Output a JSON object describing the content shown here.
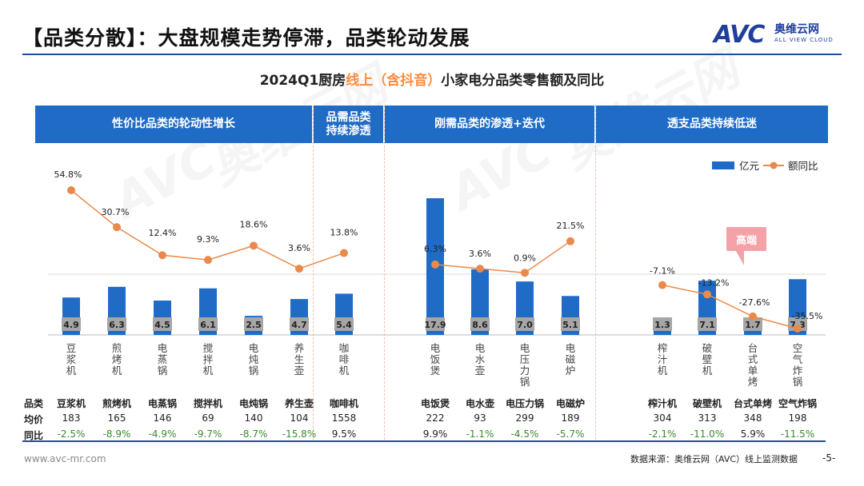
{
  "header": {
    "title": "【品类分散】：大盘规模走势停滞，品类轮动发展",
    "logo_mark": "AVC",
    "logo_cn": "奥维云网",
    "logo_en": "ALL VIEW CLOUD"
  },
  "chart_title": {
    "part1": "2024Q1厨房",
    "part2": "线上（含抖音）",
    "part3": "小家电分品类零售额及同比"
  },
  "colors": {
    "bar": "#1f6bc6",
    "line": "#e98a4c",
    "band": "#1f6bc6",
    "negative": "#3a8a2a",
    "callout": "#f4a1a8"
  },
  "segments": [
    {
      "label": "性价比品类的轮动性增长"
    },
    {
      "label": "品需品类持续渗透"
    },
    {
      "label": "刚需品类的渗透+迭代"
    },
    {
      "label": "透支品类持续低迷"
    }
  ],
  "legend": {
    "bar": "亿元",
    "line": "额同比"
  },
  "callout": "高端",
  "chart_data": {
    "type": "bar",
    "title": "2024Q1厨房线上（含抖音）小家电分品类零售额及同比",
    "categories": [
      "豆浆机",
      "煎烤机",
      "电蒸锅",
      "搅拌机",
      "电炖锅",
      "养生壶",
      "咖啡机",
      "电饭煲",
      "电水壶",
      "电压力锅",
      "电磁炉",
      "榨汁机",
      "破壁机",
      "台式单烤",
      "空气炸锅"
    ],
    "series": [
      {
        "name": "亿元",
        "kind": "bar",
        "values": [
          4.9,
          6.3,
          4.5,
          6.1,
          2.5,
          4.7,
          5.4,
          17.9,
          8.6,
          7.0,
          5.1,
          1.3,
          7.1,
          1.7,
          7.3
        ],
        "labels": [
          "4.9",
          "6.3",
          "4.5",
          "6.1",
          "2.5",
          "4.7",
          "5.4",
          "17.9",
          "8.6",
          "7.0",
          "5.1",
          "1.3",
          "7.1",
          "1.7",
          "7.3"
        ]
      },
      {
        "name": "额同比",
        "kind": "line",
        "values": [
          54.8,
          30.7,
          12.4,
          9.3,
          18.6,
          3.6,
          13.8,
          6.3,
          3.6,
          0.9,
          21.5,
          -7.1,
          -13.2,
          -27.6,
          -35.5
        ],
        "labels": [
          "54.8%",
          "30.7%",
          "12.4%",
          "9.3%",
          "18.6%",
          "3.6%",
          "13.8%",
          "6.3%",
          "3.6%",
          "0.9%",
          "21.5%",
          "-7.1%",
          "-13.2%",
          "-27.6%",
          "-35.5%"
        ]
      }
    ],
    "groups": [
      [
        0,
        1,
        2,
        3,
        4,
        5
      ],
      [
        6
      ],
      [
        7,
        8,
        9,
        10
      ],
      [
        11,
        12,
        13,
        14
      ]
    ],
    "legend_position": "top-right"
  },
  "table": {
    "row_labels": [
      "品类",
      "均价",
      "同比"
    ],
    "categories": [
      "豆浆机",
      "煎烤机",
      "电蒸锅",
      "搅拌机",
      "电炖锅",
      "养生壶",
      "咖啡机",
      "电饭煲",
      "电水壶",
      "电压力锅",
      "电磁炉",
      "榨汁机",
      "破壁机",
      "台式单烤",
      "空气炸锅"
    ],
    "avg_price": [
      "183",
      "165",
      "146",
      "69",
      "140",
      "104",
      "1558",
      "222",
      "93",
      "299",
      "189",
      "304",
      "313",
      "348",
      "198"
    ],
    "price_growth": [
      "-2.5%",
      "-8.9%",
      "-4.9%",
      "-9.7%",
      "-8.7%",
      "-15.8%",
      "9.5%",
      "9.9%",
      "-1.1%",
      "-4.5%",
      "-5.7%",
      "-2.1%",
      "-11.0%",
      "5.9%",
      "-11.5%"
    ]
  },
  "footer": {
    "website": "www.avc-mr.com",
    "source": "数据来源：奥维云网（AVC）线上监测数据",
    "page": "-5-"
  }
}
